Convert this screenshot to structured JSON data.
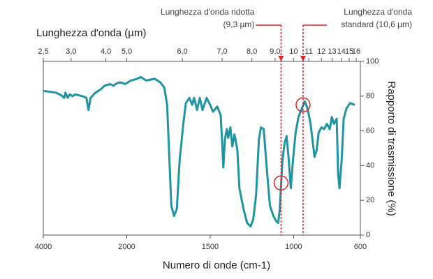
{
  "chart_data": {
    "type": "line",
    "title": "Lunghezza d'onda (µm)",
    "xlabel": "Numero di onde (cm-1)",
    "ylabel": "Rapporto di trasmissione (%)",
    "xlim": [
      4000,
      600
    ],
    "xscale_break": 2000,
    "xticks": [
      4000,
      2000,
      1500,
      1000,
      600
    ],
    "ylim": [
      0,
      100
    ],
    "yticks": [
      0,
      20,
      40,
      60,
      80,
      100
    ],
    "top_xticks": [
      {
        "value": 2.5,
        "label": "2,5"
      },
      {
        "value": 3.0,
        "label": "3,0"
      },
      {
        "value": 4.0,
        "label": "4,0"
      },
      {
        "value": 5.0,
        "label": "5,0"
      },
      {
        "value": 6.0,
        "label": "6,0"
      },
      {
        "value": 7.0,
        "label": "7,0"
      },
      {
        "value": 8.0,
        "label": "8,0"
      },
      {
        "value": 9.0,
        "label": "9,0"
      },
      10,
      11,
      12,
      13,
      14,
      15,
      16
    ],
    "series": [
      {
        "color": "#1f95a1",
        "x": [
          4000,
          3700,
          3567,
          3500,
          3467,
          3417,
          3367,
          3300,
          3233,
          3067,
          2967,
          2917,
          2867,
          2750,
          2617,
          2533,
          2400,
          2317,
          2267,
          2167,
          2033,
          1975,
          1937,
          1917,
          1883,
          1833,
          1800,
          1775,
          1758,
          1746,
          1733,
          1717,
          1700,
          1683,
          1662,
          1646,
          1625,
          1608,
          1596,
          1579,
          1562,
          1546,
          1521,
          1500,
          1483,
          1458,
          1437,
          1429,
          1421,
          1412,
          1400,
          1392,
          1379,
          1367,
          1354,
          1337,
          1325,
          1300,
          1279,
          1258,
          1242,
          1225,
          1208,
          1196,
          1179,
          1158,
          1142,
          1121,
          1104,
          1092,
          1083,
          1067,
          1054,
          1042,
          1029,
          1017,
          1004,
          988,
          971,
          950,
          933,
          917,
          900,
          887,
          875,
          862,
          850,
          833,
          817,
          800,
          783,
          771,
          758,
          742,
          733,
          725,
          712,
          700,
          683,
          662,
          633
        ],
        "values": [
          83,
          82,
          80.5,
          79,
          82,
          79,
          81,
          80,
          81,
          80,
          79,
          72,
          79,
          82,
          84,
          86,
          87,
          86,
          87,
          88,
          87,
          89,
          90,
          91,
          89,
          90,
          88,
          85,
          75,
          47,
          17,
          11,
          15,
          43,
          63,
          76,
          79,
          75,
          79,
          72,
          79,
          72,
          79,
          75,
          71,
          74,
          69,
          55,
          39,
          55,
          61,
          56,
          62,
          51,
          58,
          49,
          27,
          15,
          7,
          5,
          9,
          23,
          55,
          62,
          61,
          35,
          17,
          11,
          8,
          7,
          15,
          43,
          53,
          57,
          43,
          27,
          43,
          59,
          68,
          73,
          77,
          73,
          65,
          55,
          45,
          49,
          59,
          62,
          61,
          64,
          61,
          68,
          64,
          67,
          35,
          27,
          43,
          67,
          73,
          76,
          75
        ]
      }
    ],
    "annotations": [
      {
        "lines": [
          "Lunghezza d'onda ridotta",
          "(9,3 µm)"
        ],
        "x": 9.3,
        "y": 30,
        "color": "#d7282f"
      },
      {
        "lines": [
          "Lunghezza d'onda",
          "standard (10,6 µm)"
        ],
        "x": 10.6,
        "y": 75,
        "color": "#d7282f"
      }
    ]
  }
}
